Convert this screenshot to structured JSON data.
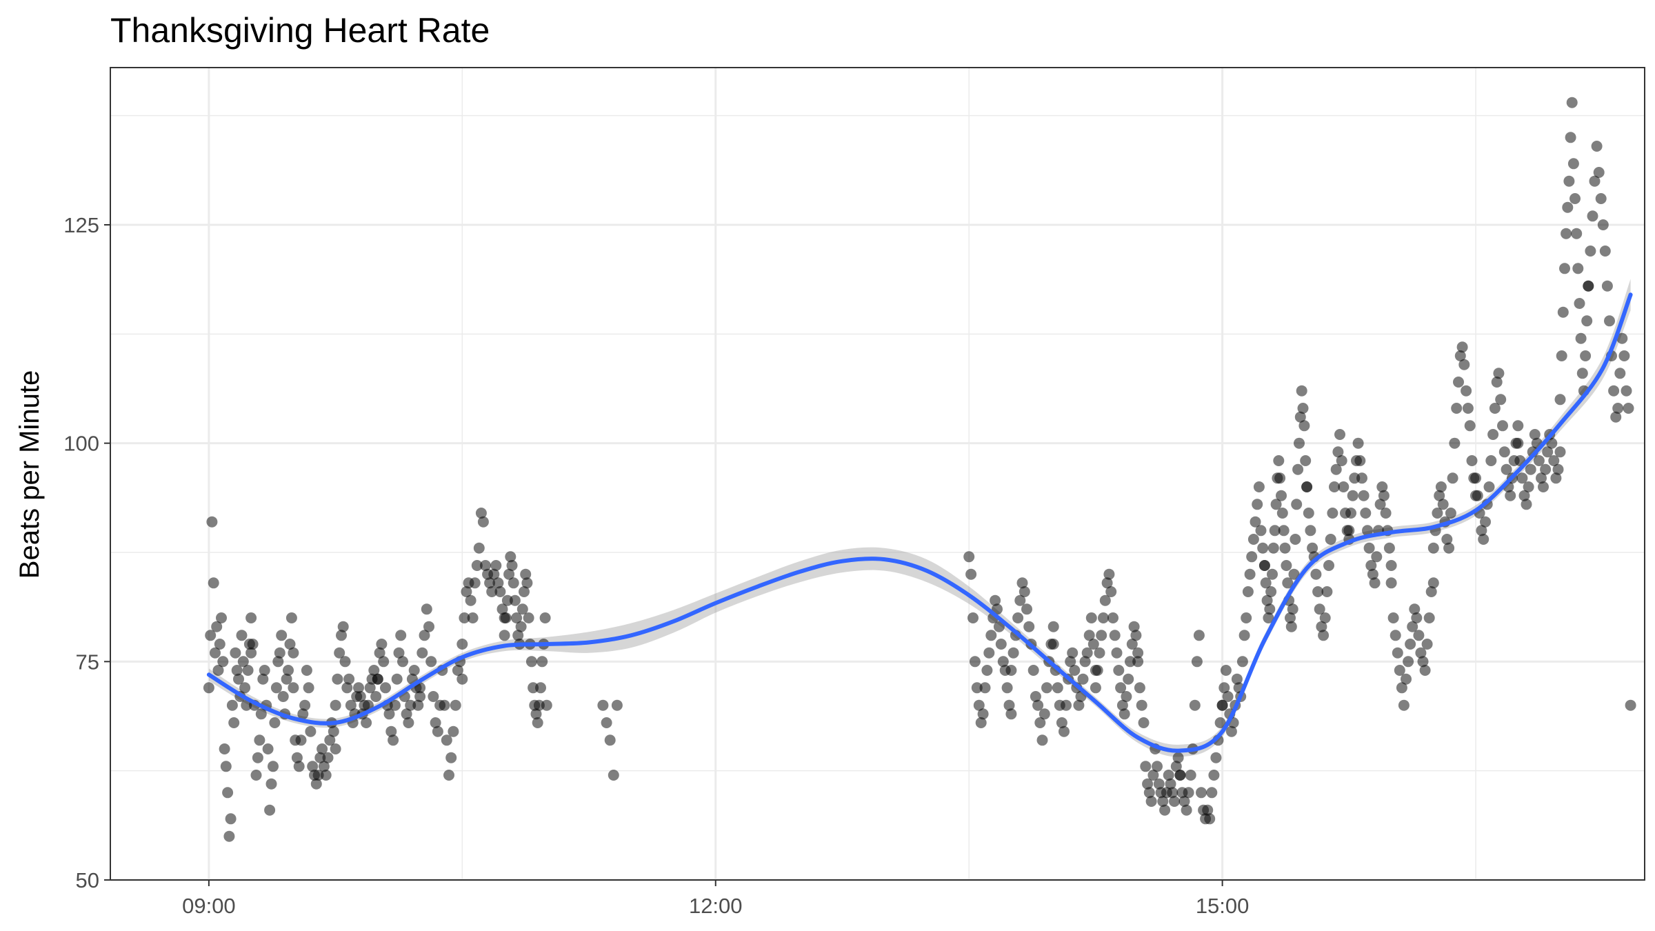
{
  "chart_data": {
    "type": "scatter",
    "title": "Thanksgiving Heart Rate",
    "xlabel": "",
    "ylabel": "Beats per Minute",
    "x_is_time": true,
    "xlim": [
      "08:25",
      "17:30"
    ],
    "ylim": [
      50,
      143
    ],
    "x_ticks": [
      "09:00",
      "12:00",
      "15:00"
    ],
    "x_minor_ticks": [
      "10:30",
      "13:30",
      "16:30"
    ],
    "y_ticks": [
      50,
      75,
      100,
      125
    ],
    "y_minor_ticks": [
      62.5,
      87.5,
      112.5,
      137.5
    ],
    "grid": true,
    "legend": "none",
    "colors": {
      "points": "#000000",
      "smooth_line": "#3366FF",
      "confidence_band": "#999999",
      "grid": "#ebebeb",
      "panel_border": "#333333"
    },
    "segments": [
      {
        "start": "09:00",
        "end": "09:15",
        "values": [
          72,
          78,
          91,
          84,
          76,
          79,
          74,
          77,
          80,
          75,
          65,
          63,
          60,
          55,
          57,
          70,
          68,
          76,
          74,
          73,
          71,
          78,
          75,
          72,
          70,
          74,
          77,
          76
        ]
      },
      {
        "start": "09:15",
        "end": "09:30",
        "values": [
          80,
          77,
          70,
          62,
          64,
          66,
          69,
          73,
          74,
          70,
          65,
          58,
          61,
          63,
          68,
          72,
          75,
          76,
          78,
          71,
          69,
          73,
          74,
          77,
          80,
          76
        ]
      },
      {
        "start": "09:30",
        "end": "09:45",
        "values": [
          72,
          66,
          64,
          63,
          66,
          69,
          70,
          74,
          72,
          67,
          63,
          62,
          61,
          62,
          64,
          65,
          63,
          62,
          64,
          66,
          68,
          67,
          65
        ]
      },
      {
        "start": "09:45",
        "end": "10:00",
        "values": [
          70,
          73,
          76,
          78,
          79,
          75,
          72,
          73,
          70,
          68,
          69,
          71,
          72,
          71,
          69,
          70,
          68,
          70,
          72,
          73,
          74,
          71,
          73
        ]
      },
      {
        "start": "10:00",
        "end": "10:15",
        "values": [
          73,
          76,
          77,
          75,
          72,
          70,
          69,
          67,
          66,
          70,
          73,
          76,
          78,
          75,
          71,
          69,
          68,
          70,
          73,
          74,
          72,
          70,
          72
        ]
      },
      {
        "start": "10:15",
        "end": "10:30",
        "values": [
          71,
          76,
          78,
          81,
          79,
          75,
          71,
          68,
          67,
          70,
          74,
          70,
          66,
          62,
          64,
          67,
          70,
          74,
          75,
          73
        ]
      },
      {
        "start": "10:30",
        "end": "10:45",
        "values": [
          77,
          80,
          83,
          84,
          82,
          80,
          84,
          86,
          88,
          92,
          91,
          86,
          85,
          84,
          83,
          85,
          86,
          84,
          83,
          81,
          80
        ]
      },
      {
        "start": "10:45",
        "end": "11:00",
        "values": [
          78,
          80,
          82,
          85,
          87,
          86,
          84,
          82,
          80,
          78,
          77,
          79,
          81,
          83,
          85,
          84,
          80,
          77,
          75,
          72,
          70,
          69,
          68,
          70,
          72,
          75,
          77,
          80,
          70
        ]
      },
      {
        "start": "11:20",
        "end": "11:25",
        "values": [
          70,
          68,
          66,
          62,
          70
        ]
      },
      {
        "start": "13:30",
        "end": "13:45",
        "values": [
          87,
          85,
          80,
          75,
          72,
          70,
          68,
          69,
          72,
          74,
          76,
          78,
          80,
          82,
          81,
          79,
          77,
          75,
          74,
          72,
          70,
          69
        ]
      },
      {
        "start": "13:45",
        "end": "14:00",
        "values": [
          74,
          76,
          78,
          80,
          82,
          84,
          83,
          81,
          79,
          77,
          74,
          71,
          70,
          68,
          66,
          69,
          72,
          75,
          77,
          79
        ]
      },
      {
        "start": "14:00",
        "end": "14:15",
        "values": [
          77,
          74,
          72,
          70,
          68,
          67,
          70,
          73,
          75,
          76,
          74,
          72,
          70,
          71,
          73,
          75,
          76,
          78,
          80,
          77,
          74
        ]
      },
      {
        "start": "14:15",
        "end": "14:30",
        "values": [
          72,
          74,
          76,
          78,
          80,
          82,
          84,
          85,
          83,
          80,
          78,
          76,
          74,
          72,
          70,
          69,
          71,
          73,
          75,
          77,
          79,
          78,
          76
        ]
      },
      {
        "start": "14:30",
        "end": "14:45",
        "values": [
          75,
          72,
          70,
          68,
          63,
          61,
          60,
          59,
          62,
          65,
          63,
          61,
          60,
          59,
          58,
          60,
          62,
          61,
          60,
          59,
          63,
          64,
          62
        ]
      },
      {
        "start": "14:45",
        "end": "15:00",
        "values": [
          62,
          60,
          59,
          58,
          60,
          62,
          65,
          70,
          75,
          78,
          60,
          58,
          57,
          58,
          57,
          60,
          62,
          64,
          66,
          68,
          70
        ]
      },
      {
        "start": "15:00",
        "end": "15:15",
        "values": [
          70,
          72,
          74,
          71,
          69,
          67,
          68,
          70,
          73,
          72,
          71,
          75,
          78,
          80,
          83,
          85,
          87,
          89,
          91,
          93,
          95,
          90,
          88,
          86
        ]
      },
      {
        "start": "15:15",
        "end": "15:30",
        "values": [
          86,
          84,
          82,
          80,
          81,
          83,
          85,
          88,
          90,
          93,
          96,
          98,
          96,
          94,
          92,
          90,
          88,
          86,
          84,
          82,
          80,
          79,
          81,
          85,
          89,
          93,
          97,
          100,
          103,
          106,
          104,
          102,
          98,
          95
        ]
      },
      {
        "start": "15:30",
        "end": "15:45",
        "values": [
          95,
          92,
          90,
          88,
          87,
          85,
          83,
          81,
          79,
          78,
          80,
          83,
          86,
          89,
          92,
          95,
          97,
          99,
          101,
          98,
          95,
          92,
          90,
          89
        ]
      },
      {
        "start": "15:45",
        "end": "16:00",
        "values": [
          90,
          92,
          94,
          96,
          98,
          100,
          98,
          96,
          94,
          92,
          90,
          88,
          86,
          85,
          84,
          87,
          90,
          93,
          95,
          94,
          92,
          90,
          88,
          86
        ]
      },
      {
        "start": "16:00",
        "end": "16:15",
        "values": [
          84,
          80,
          78,
          76,
          74,
          72,
          70,
          73,
          75,
          77,
          79,
          81,
          80,
          78,
          76,
          75,
          74,
          77,
          80,
          83,
          84
        ]
      },
      {
        "start": "16:15",
        "end": "16:30",
        "values": [
          88,
          90,
          92,
          94,
          95,
          93,
          91,
          89,
          88,
          92,
          96,
          100,
          104,
          107,
          110,
          111,
          109,
          106,
          104,
          102,
          98,
          96,
          94
        ]
      },
      {
        "start": "16:30",
        "end": "16:45",
        "values": [
          96,
          94,
          92,
          90,
          89,
          91,
          93,
          95,
          98,
          101,
          104,
          107,
          108,
          105,
          102,
          99,
          97,
          95,
          94,
          96,
          98,
          100,
          102
        ]
      },
      {
        "start": "16:45",
        "end": "17:00",
        "values": [
          100,
          98,
          96,
          94,
          93,
          95,
          97,
          99,
          101,
          100,
          98,
          96,
          95,
          97,
          99,
          101,
          100,
          98,
          96,
          97,
          99
        ]
      },
      {
        "start": "17:00",
        "end": "17:10",
        "values": [
          105,
          110,
          115,
          120,
          124,
          127,
          130,
          135,
          139,
          132,
          128,
          124,
          120,
          116,
          112,
          108,
          106,
          110,
          114,
          118
        ]
      },
      {
        "start": "17:10",
        "end": "17:25",
        "values": [
          118,
          122,
          126,
          130,
          134,
          131,
          128,
          125,
          122,
          118,
          114,
          110,
          106,
          103,
          104,
          108,
          112,
          110,
          106,
          104,
          70
        ]
      }
    ],
    "smooth_fit": {
      "method": "loess",
      "x": [
        "09:00",
        "09:15",
        "09:30",
        "09:45",
        "10:00",
        "10:15",
        "10:30",
        "10:45",
        "11:00",
        "11:15",
        "11:30",
        "11:45",
        "12:00",
        "12:15",
        "12:30",
        "12:45",
        "13:00",
        "13:15",
        "13:30",
        "13:45",
        "14:00",
        "14:15",
        "14:30",
        "14:45",
        "15:00",
        "15:15",
        "15:30",
        "15:45",
        "16:00",
        "16:15",
        "16:30",
        "16:45",
        "17:00",
        "17:15",
        "17:25"
      ],
      "y": [
        73.5,
        70.5,
        68.5,
        68.0,
        69.8,
        72.8,
        75.5,
        76.8,
        77.0,
        77.2,
        78.0,
        79.6,
        81.7,
        83.6,
        85.3,
        86.5,
        86.7,
        85.4,
        82.6,
        78.8,
        74.6,
        70.4,
        66.3,
        64.8,
        67.0,
        77.5,
        85.7,
        88.7,
        89.8,
        90.4,
        92.3,
        96.8,
        102.2,
        108.5,
        117.0
      ],
      "ci_halfwidth": [
        0.7,
        0.6,
        0.5,
        0.5,
        0.5,
        0.5,
        0.5,
        0.6,
        0.8,
        1.2,
        1.4,
        1.3,
        1.1,
        1.1,
        1.2,
        1.3,
        1.3,
        1.3,
        1.0,
        0.7,
        0.6,
        0.5,
        0.6,
        0.7,
        0.6,
        0.6,
        0.6,
        0.6,
        0.6,
        0.6,
        0.6,
        0.6,
        0.8,
        1.2,
        1.8
      ]
    }
  }
}
